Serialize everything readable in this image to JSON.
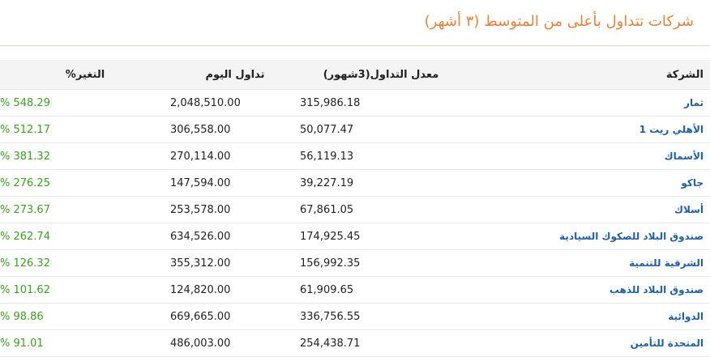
{
  "widget": {
    "title": "شركات تتداول بأعلى من المتوسط (٣ أشهر)"
  },
  "table": {
    "columns": {
      "company": "الشركة",
      "avg_volume": "معدل التداول(3شهور)",
      "today_volume": "تداول اليوم",
      "change": "التغير%"
    },
    "rows": [
      {
        "company": "ثمار",
        "avg_volume": "315,986.18",
        "today_volume": "2,048,510.00",
        "change": "% 548.29"
      },
      {
        "company": "الأهلي ريت 1",
        "avg_volume": "50,077.47",
        "today_volume": "306,558.00",
        "change": "% 512.17"
      },
      {
        "company": "الأسماك",
        "avg_volume": "56,119.13",
        "today_volume": "270,114.00",
        "change": "% 381.32"
      },
      {
        "company": "جاكو",
        "avg_volume": "39,227.19",
        "today_volume": "147,594.00",
        "change": "% 276.25"
      },
      {
        "company": "أسلاك",
        "avg_volume": "67,861.05",
        "today_volume": "253,578.00",
        "change": "% 273.67"
      },
      {
        "company": "صندوق البلاد للصكوك السيادية",
        "avg_volume": "174,925.45",
        "today_volume": "634,526.00",
        "change": "% 262.74"
      },
      {
        "company": "الشرقية للتنمية",
        "avg_volume": "156,992.35",
        "today_volume": "355,312.00",
        "change": "% 126.32"
      },
      {
        "company": "صندوق البلاد للذهب",
        "avg_volume": "61,909.65",
        "today_volume": "124,820.00",
        "change": "% 101.62"
      },
      {
        "company": "الدوائية",
        "avg_volume": "336,756.55",
        "today_volume": "669,665.00",
        "change": "% 98.86"
      },
      {
        "company": "المتحدة للتأمين",
        "avg_volume": "254,438.71",
        "today_volume": "486,003.00",
        "change": "% 91.01"
      }
    ]
  },
  "colors": {
    "title": "#e8823a",
    "link": "#1f5fa8",
    "positive": "#3aa11f",
    "header_bg": "#f4f4f4"
  }
}
